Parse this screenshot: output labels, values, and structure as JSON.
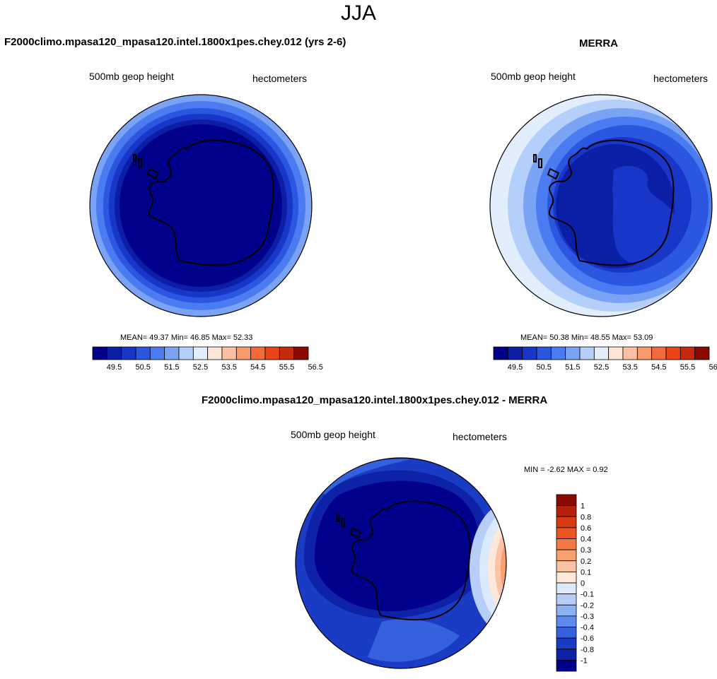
{
  "page_title": "JJA",
  "panels": [
    {
      "title": "F2000climo.mpasa120_mpasa120.intel.1800x1pes.chey.012 (yrs 2-6)",
      "left_label": "500mb geop height",
      "right_label": "hectometers",
      "stats": "MEAN=  49.37  Min=  46.85  Max=  52.33"
    },
    {
      "title": "MERRA",
      "left_label": "500mb geop height",
      "right_label": "hectometers",
      "stats": "MEAN=  50.38  Min=  48.55  Max=  53.09"
    },
    {
      "title": "F2000climo.mpasa120_mpasa120.intel.1800x1pes.chey.012 - MERRA",
      "left_label": "500mb geop height",
      "right_label": "hectometers",
      "stats": "MIN =  -2.62 MAX =   0.92"
    }
  ],
  "colorbar_height": {
    "tick_labels": [
      "49.5",
      "50.5",
      "51.5",
      "52.5",
      "53.5",
      "54.5",
      "55.5",
      "56.5"
    ],
    "colors": [
      "#00008b",
      "#0b1fa6",
      "#1836c8",
      "#2a56e0",
      "#4a7bf0",
      "#7aa3f5",
      "#b4cff9",
      "#e3eefc",
      "#fde6d8",
      "#fcc0a0",
      "#f99a6c",
      "#f46a3a",
      "#e94316",
      "#c42a0b",
      "#8b0a00"
    ]
  },
  "colorbar_diff": {
    "tick_labels": [
      "1",
      "0.8",
      "0.6",
      "0.4",
      "0.3",
      "0.2",
      "0.1",
      "0",
      "-0.1",
      "-0.2",
      "-0.3",
      "-0.4",
      "-0.6",
      "-0.8",
      "-1"
    ],
    "colors": [
      "#8b0a00",
      "#b5210a",
      "#d93a10",
      "#ec5520",
      "#f37a45",
      "#f8a070",
      "#fbc3a3",
      "#fde8d9",
      "#dce8fb",
      "#b7cff8",
      "#8db2f3",
      "#5d8aec",
      "#3561de",
      "#1a3cc4",
      "#0e22a8",
      "#00008b"
    ]
  },
  "colors": {
    "map_dark": "#00008b",
    "contour": "#000000"
  }
}
